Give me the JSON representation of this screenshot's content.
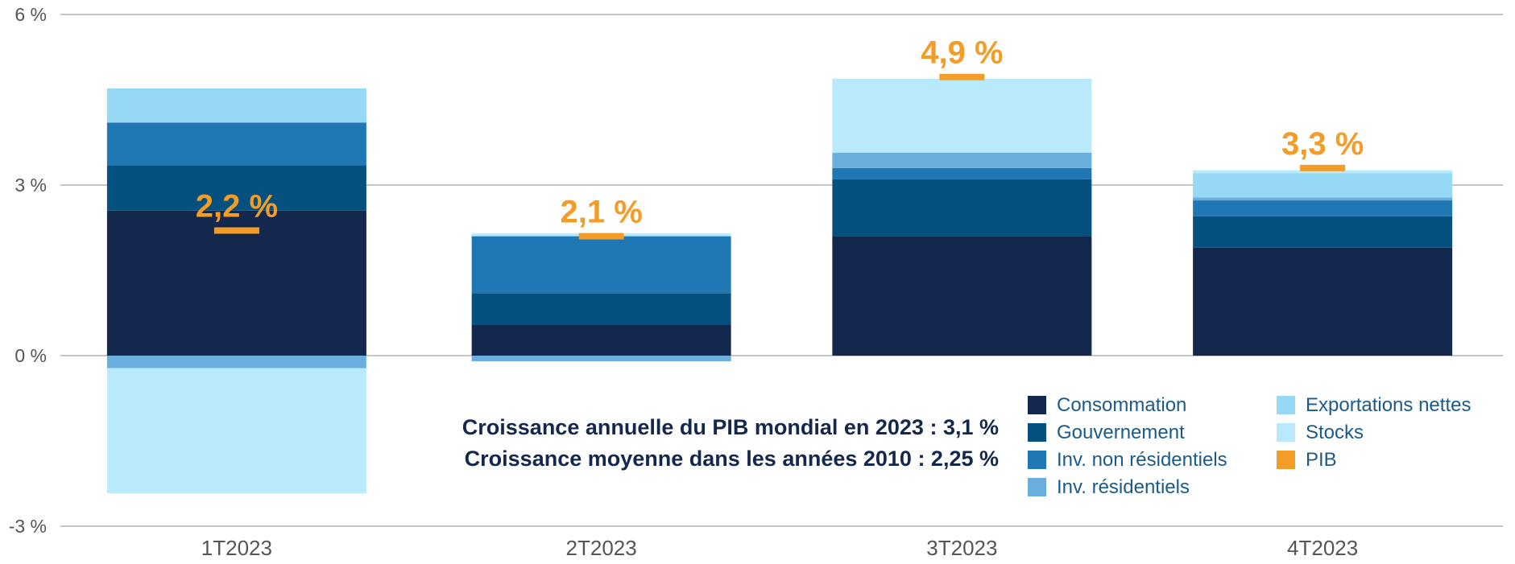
{
  "chart_data": {
    "type": "bar",
    "stacked": true,
    "categories": [
      "1T2023",
      "2T2023",
      "3T2023",
      "4T2023"
    ],
    "y_ticks": [
      {
        "value": 6,
        "label": "6 %"
      },
      {
        "value": 3,
        "label": "3 %"
      },
      {
        "value": 0,
        "label": "0 %"
      },
      {
        "value": -3,
        "label": "-3 %"
      }
    ],
    "ylim": [
      -3,
      6
    ],
    "grid": true,
    "legend_position": "bottom-right",
    "series": [
      {
        "name": "Consommation",
        "color": "#14284E",
        "values": [
          2.55,
          0.55,
          2.1,
          1.9
        ]
      },
      {
        "name": "Gouvernement",
        "color": "#04507F",
        "values": [
          0.8,
          0.55,
          1.0,
          0.55
        ]
      },
      {
        "name": "Inv. non résidentiels",
        "color": "#1F77B4",
        "values": [
          0.75,
          1.0,
          0.2,
          0.28
        ]
      },
      {
        "name": "Inv. résidentiels",
        "color": "#6AAEDD",
        "values": [
          -0.22,
          -0.1,
          0.27,
          0.05
        ]
      },
      {
        "name": "Exportations nettes",
        "color": "#97D8F5",
        "values": [
          0.6,
          0.0,
          0.0,
          0.43
        ]
      },
      {
        "name": "Stocks",
        "color": "#B9EAFC",
        "values": [
          -2.2,
          0.05,
          1.3,
          0.05
        ]
      }
    ],
    "gdp": {
      "name": "PIB",
      "color": "#F39C27",
      "values": [
        2.2,
        2.1,
        4.9,
        3.3
      ],
      "labels": [
        "2,2 %",
        "2,1 %",
        "4,9 %",
        "3,3 %"
      ]
    },
    "annotations": [
      "Croissance annuelle du PIB mondial en 2023 : 3,1 %",
      "Croissance moyenne dans les années 2010 : 2,25 %"
    ]
  }
}
